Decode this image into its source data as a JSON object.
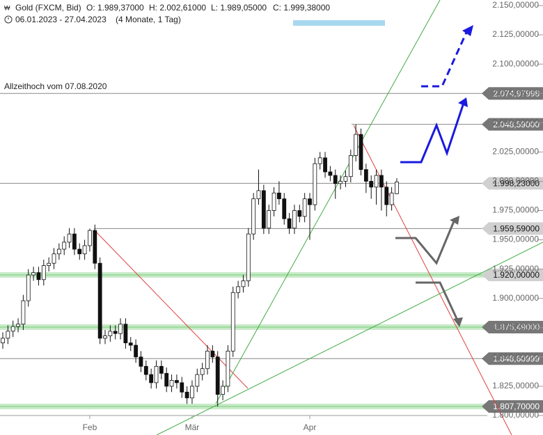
{
  "chart_data": {
    "type": "candlestick",
    "title": "Gold (FXCM, Bid)",
    "header_values": [
      "O: 1.989,37000",
      "H: 2.002,61000",
      "L: 1.989,05000",
      "C: 1.999,38000"
    ],
    "period": "06.01.2023 - 27.04.2023",
    "period_length": "(4 Monate, 1 Tag)",
    "annotation": "Allzeithoch vom 07.08.2020",
    "categories": [
      null,
      null,
      null,
      null,
      null,
      null,
      null,
      null,
      null,
      null,
      null,
      null,
      null,
      null,
      null,
      null,
      null,
      "Feb",
      null,
      null,
      null,
      null,
      null,
      null,
      null,
      null,
      null,
      null,
      null,
      null,
      null,
      null,
      null,
      null,
      null,
      null,
      null,
      "Mär",
      null,
      null,
      null,
      null,
      null,
      null,
      null,
      null,
      null,
      null,
      null,
      null,
      null,
      null,
      null,
      null,
      null,
      null,
      null,
      null,
      null,
      null,
      "Apr",
      null,
      null,
      null,
      null,
      null,
      null,
      null,
      null,
      null,
      null,
      null,
      null,
      null,
      null,
      null,
      null,
      null
    ],
    "open": [
      1862,
      1866,
      1872,
      1876,
      1878,
      1898,
      1920,
      1922,
      1916,
      1928,
      1930,
      1938,
      1942,
      1948,
      1955,
      1942,
      1938,
      1945,
      1958,
      1930,
      1866,
      1868,
      1872,
      1870,
      1878,
      1862,
      1860,
      1850,
      1842,
      1835,
      1828,
      1842,
      1836,
      1825,
      1830,
      1828,
      1820,
      1815,
      1825,
      1835,
      1840,
      1855,
      1850,
      1818,
      1825,
      1855,
      1905,
      1910,
      1915,
      1955,
      1985,
      1992,
      1960,
      1975,
      1990,
      1985,
      1968,
      1960,
      1975,
      1970,
      1985,
      1980,
      2015,
      2020,
      2008,
      2005,
      1998,
      2000,
      2004,
      2022,
      2040,
      2010,
      2000,
      1995,
      2005,
      1995,
      1980,
      1989.37
    ],
    "high": [
      1871,
      1877,
      1881,
      1883,
      1903,
      1925,
      1927,
      1927,
      1933,
      1935,
      1943,
      1947,
      1953,
      1960,
      1960,
      1947,
      1950,
      1959.59,
      1963,
      1935,
      1873,
      1877,
      1877,
      1883,
      1883,
      1867,
      1865,
      1855,
      1847,
      1840,
      1847,
      1847,
      1841,
      1835,
      1835,
      1833,
      1825,
      1830,
      1840,
      1845,
      1860,
      1860,
      1855,
      1830,
      1860,
      1910,
      1915,
      1920,
      1960,
      1990,
      2010,
      1997,
      1980,
      1995,
      2000,
      1990,
      1973,
      1980,
      1980,
      1990,
      1990,
      2020,
      2025,
      2025,
      2013,
      2010,
      2005,
      2009,
      2027,
      2048.59,
      2045,
      2015,
      2005,
      2010,
      2010,
      2000,
      1995,
      2002.61
    ],
    "low": [
      1857,
      1861,
      1867,
      1871,
      1873,
      1893,
      1915,
      1911,
      1911,
      1923,
      1925,
      1933,
      1937,
      1943,
      1937,
      1933,
      1933,
      1940,
      1925,
      1861,
      1861,
      1863,
      1865,
      1865,
      1857,
      1855,
      1845,
      1837,
      1830,
      1823,
      1823,
      1831,
      1820,
      1820,
      1823,
      1815,
      1810,
      1810,
      1820,
      1830,
      1835,
      1845,
      1807.7,
      1813,
      1820,
      1850,
      1900,
      1905,
      1910,
      1950,
      1980,
      1955,
      1955,
      1970,
      1980,
      1963,
      1955,
      1955,
      1965,
      1965,
      1950,
      1975,
      2010,
      2003,
      2000,
      1985,
      1993,
      1995,
      1999,
      2017,
      2005,
      1990,
      1985,
      1980,
      1975,
      1970,
      1975,
      1989.05
    ],
    "close": [
      1866,
      1872,
      1876,
      1878,
      1898,
      1920,
      1922,
      1916,
      1928,
      1930,
      1938,
      1942,
      1948,
      1955,
      1942,
      1938,
      1945,
      1958,
      1930,
      1866,
      1868,
      1872,
      1870,
      1878,
      1862,
      1860,
      1850,
      1842,
      1835,
      1828,
      1842,
      1836,
      1825,
      1830,
      1828,
      1820,
      1815,
      1825,
      1835,
      1840,
      1855,
      1850,
      1818,
      1825,
      1855,
      1905,
      1910,
      1915,
      1955,
      1985,
      1992,
      1960,
      1975,
      1990,
      1985,
      1968,
      1960,
      1975,
      1970,
      1985,
      1980,
      2015,
      2020,
      2008,
      2005,
      1998,
      2000,
      2004,
      2022,
      2040,
      2010,
      2000,
      1995,
      2005,
      1995,
      1980,
      1990,
      1999.38
    ],
    "ylim": [
      1800,
      2150
    ],
    "yticks": [
      {
        "value": 1800,
        "label": "1.800,00000"
      },
      {
        "value": 1825,
        "label": "1.825,00000"
      },
      {
        "value": 1850,
        "label": "1.850,00000"
      },
      {
        "value": 1875,
        "label": "1.875,00000"
      },
      {
        "value": 1900,
        "label": "1.900,00000"
      },
      {
        "value": 1925,
        "label": "1.925,00000"
      },
      {
        "value": 1950,
        "label": "1.950,00000"
      },
      {
        "value": 1975,
        "label": "1.975,00000"
      },
      {
        "value": 2000,
        "label": "2.000,00000"
      },
      {
        "value": 2025,
        "label": "2.025,00000"
      },
      {
        "value": 2050,
        "label": "2.050,00000"
      },
      {
        "value": 2075,
        "label": "2.075,00000"
      },
      {
        "value": 2100,
        "label": "2.100,00000"
      },
      {
        "value": 2125,
        "label": "2.125,00000"
      },
      {
        "value": 2150,
        "label": "2.150,00000"
      }
    ],
    "levels": [
      {
        "value": 2074.97998,
        "label": "2.074,97998",
        "color": "#777777"
      },
      {
        "value": 2048.59,
        "label": "2.048,59000",
        "color": "#777777"
      },
      {
        "value": 1998.23,
        "label": "1.998,23000",
        "color": "#d0d0d0"
      },
      {
        "value": 1959.59,
        "label": "1.959,59000",
        "color": "#d0d0d0"
      },
      {
        "value": 1920,
        "label": "1.920,00000",
        "color": "#d0d0d0",
        "zone": true
      },
      {
        "value": 1875.49,
        "label": "1.875,49000",
        "color": "#777777",
        "zone": true
      },
      {
        "value": 1848.60999,
        "label": "1.848,60999",
        "color": "#777777"
      },
      {
        "value": 1807.7,
        "label": "1.807,70000",
        "color": "#777777",
        "zone": true
      }
    ]
  }
}
